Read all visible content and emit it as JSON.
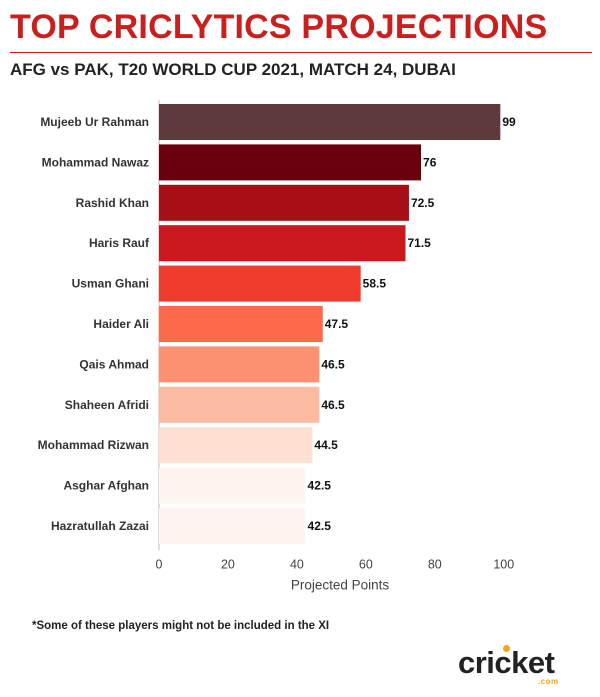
{
  "header": {
    "title": "TOP CRICLYTICS PROJECTIONS",
    "subtitle": "AFG vs PAK, T20 WORLD CUP 2021, MATCH 24, DUBAI"
  },
  "footnote": "*Some of these players might not be included in the XI",
  "logo": {
    "word": "cricket",
    "suffix": ".com"
  },
  "chart_data": {
    "type": "bar",
    "orientation": "horizontal",
    "categories": [
      "Mujeeb Ur Rahman",
      "Mohammad Nawaz",
      "Rashid Khan",
      "Haris Rauf",
      "Usman Ghani",
      "Haider Ali",
      "Qais Ahmad",
      "Shaheen Afridi",
      "Mohammad Rizwan",
      "Asghar Afghan",
      "Hazratullah Zazai"
    ],
    "values": [
      99,
      76,
      72.5,
      71.5,
      58.5,
      47.5,
      46.5,
      46.5,
      44.5,
      42.5,
      42.5
    ],
    "value_labels": [
      "99",
      "76",
      "72.5",
      "71.5",
      "58.5",
      "47.5",
      "46.5",
      "46.5",
      "44.5",
      "42.5",
      "42.5"
    ],
    "colors": [
      "#5e3a3c",
      "#6a000d",
      "#a50f15",
      "#cb181d",
      "#ef3b2c",
      "#fb6a4a",
      "#fc9272",
      "#fcbba1",
      "#fee0d2",
      "#fff5f0",
      "#fff5f0"
    ],
    "xlabel": "Projected Points",
    "ylabel": "",
    "xlim": [
      0,
      105
    ],
    "xticks": [
      0,
      20,
      40,
      60,
      80,
      100
    ],
    "grid": false
  }
}
